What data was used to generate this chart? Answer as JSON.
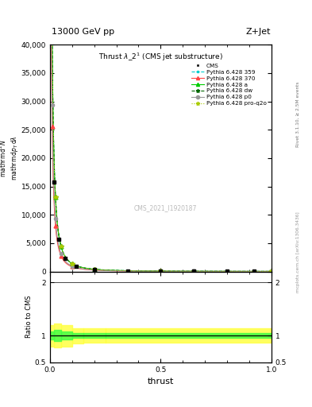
{
  "title_top": "13000 GeV pp",
  "title_right": "Z+Jet",
  "plot_title": "Thrust $\\lambda\\_2^1$ (CMS jet substructure)",
  "xlabel": "thrust",
  "ylabel_main": "$\\mathrm{mathrm\\,d}^2N$",
  "ylabel_ratio": "Ratio to CMS",
  "right_label_top": "Rivet 3.1.10, ≥ 2.5M events",
  "right_label_bottom": "mcplots.cern.ch [arXiv:1306.3436]",
  "watermark": "CMS_2021_I1920187",
  "ylim_main": [
    0,
    40000
  ],
  "ylim_ratio": [
    0.5,
    2.2
  ],
  "yticks_main": [
    0,
    5000,
    10000,
    15000,
    20000,
    25000,
    30000,
    35000,
    40000
  ],
  "colors": {
    "cms": "#000000",
    "p359": "#00cccc",
    "p370": "#ff4444",
    "pa": "#00cc00",
    "pdw": "#006600",
    "pp0": "#999999",
    "pproq2o": "#aacc00"
  }
}
